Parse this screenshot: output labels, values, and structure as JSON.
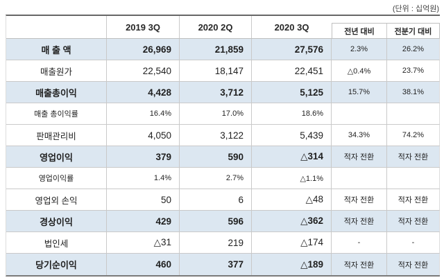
{
  "unit_label": "(단위 : 십억원)",
  "table": {
    "columns": [
      "2019 3Q",
      "2020 2Q",
      "2020 3Q",
      "전년 대비",
      "전분기 대비"
    ],
    "rows": [
      {
        "label": "매 출 액",
        "q1": "26,969",
        "q2": "21,859",
        "q3": "27,576",
        "yoy": "2.3%",
        "qoq": "26.2%",
        "style": "highlight"
      },
      {
        "label": "매출원가",
        "q1": "22,540",
        "q2": "18,147",
        "q3": "22,451",
        "yoy": "△0.4%",
        "qoq": "23.7%",
        "style": "normal"
      },
      {
        "label": "매출총이익",
        "q1": "4,428",
        "q2": "3,712",
        "q3": "5,125",
        "yoy": "15.7%",
        "qoq": "38.1%",
        "style": "highlight"
      },
      {
        "label": "매출 총이익률",
        "q1": "16.4%",
        "q2": "17.0%",
        "q3": "18.6%",
        "yoy": "",
        "qoq": "",
        "style": "ratio"
      },
      {
        "label": "판매관리비",
        "q1": "4,050",
        "q2": "3,122",
        "q3": "5,439",
        "yoy": "34.3%",
        "qoq": "74.2%",
        "style": "normal"
      },
      {
        "label": "영업이익",
        "q1": "379",
        "q2": "590",
        "q3": "△314",
        "yoy": "적자 전환",
        "qoq": "적자 전환",
        "style": "highlight"
      },
      {
        "label": "영업이익률",
        "q1": "1.4%",
        "q2": "2.7%",
        "q3": "△1.1%",
        "yoy": "",
        "qoq": "",
        "style": "ratio"
      },
      {
        "label": "영업외 손익",
        "q1": "50",
        "q2": "6",
        "q3": "△48",
        "yoy": "적자 전환",
        "qoq": "적자 전환",
        "style": "normal"
      },
      {
        "label": "경상이익",
        "q1": "429",
        "q2": "596",
        "q3": "△362",
        "yoy": "적자 전환",
        "qoq": "적자 전환",
        "style": "highlight"
      },
      {
        "label": "법인세",
        "q1": "△31",
        "q2": "219",
        "q3": "△174",
        "yoy": "-",
        "qoq": "-",
        "style": "normal"
      },
      {
        "label": "당기순이익",
        "q1": "460",
        "q2": "377",
        "q3": "△189",
        "yoy": "적자 전환",
        "qoq": "적자 전환",
        "style": "highlight"
      }
    ]
  },
  "colors": {
    "highlight_row_bg": "#dce7f1",
    "border_light": "#c9c9c9",
    "border_thick_top": "#666666",
    "border_thick_bottom": "#7a7a7a",
    "text": "#1f1f1f"
  }
}
